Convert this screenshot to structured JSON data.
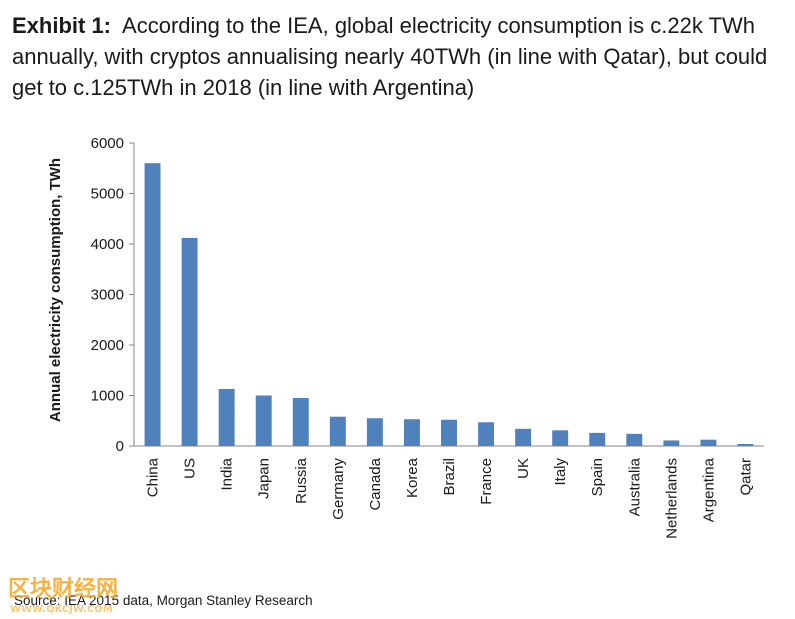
{
  "header": {
    "lead": "Exhibit 1:",
    "text": "According to the IEA, global electricity consumption is c.22k TWh annually, with cryptos annualising nearly 40TWh (in line with Qatar), but could get to c.125TWh in 2018 (in line with Argentina)"
  },
  "chart_data": {
    "type": "bar",
    "title": "",
    "xlabel": "",
    "ylabel": "Annual electricity consumption, TWh",
    "ylim": [
      0,
      6000
    ],
    "yticks": [
      0,
      1000,
      2000,
      3000,
      4000,
      5000,
      6000
    ],
    "grid": false,
    "legend": "none",
    "bar_color": "#4f81bd",
    "categories": [
      "China",
      "US",
      "India",
      "Japan",
      "Russia",
      "Germany",
      "Canada",
      "Korea",
      "Brazil",
      "France",
      "UK",
      "Italy",
      "Spain",
      "Australia",
      "Netherlands",
      "Argentina",
      "Qatar"
    ],
    "values": [
      5600,
      4120,
      1130,
      1000,
      950,
      580,
      550,
      530,
      520,
      470,
      340,
      310,
      260,
      240,
      110,
      125,
      40
    ]
  },
  "source": "Source: IEA 2015 data, Morgan Stanley Research",
  "watermark": {
    "brand": "区块财经网",
    "url": "WWW.QKCJW.COM",
    "color": "#f5a623"
  }
}
